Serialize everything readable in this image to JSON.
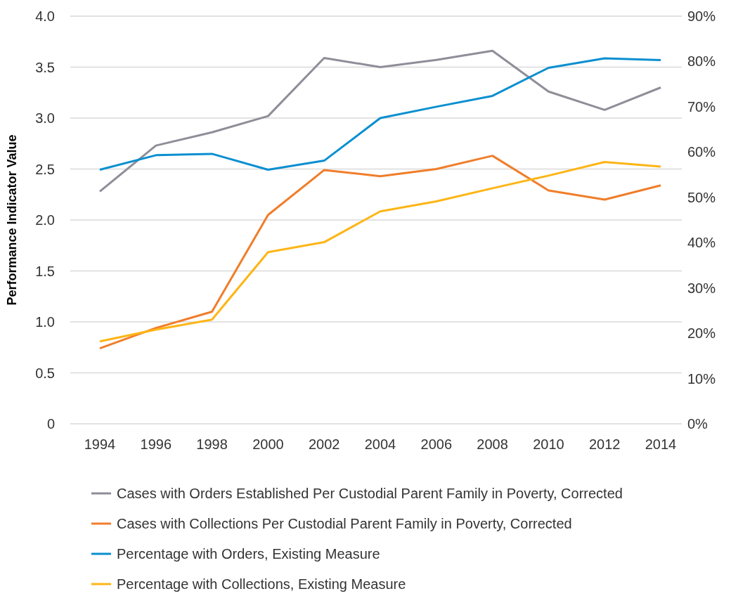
{
  "chart_data": {
    "type": "line",
    "ylabel": "Performance Indicator Value",
    "categories": [
      "1994",
      "1996",
      "1998",
      "2000",
      "2002",
      "2004",
      "2006",
      "2008",
      "2010",
      "2012",
      "2014"
    ],
    "series": [
      {
        "name": "Cases with Orders Established Per Custodial Parent Family in Poverty, Corrected",
        "color": "#8e8e99",
        "values": [
          2.28,
          2.73,
          2.86,
          3.02,
          3.59,
          3.5,
          3.57,
          3.66,
          3.26,
          3.08,
          3.3
        ]
      },
      {
        "name": "Cases with Collections Per Custodial Parent Family in Poverty, Corrected",
        "color": "#f07d2a",
        "values": [
          0.74,
          0.94,
          1.1,
          2.05,
          2.49,
          2.43,
          2.5,
          2.63,
          2.29,
          2.2,
          2.34
        ]
      },
      {
        "name": "Percentage with Orders, Existing Measure",
        "color": "#0a8fd0",
        "axis": "y2",
        "values": [
          56.1,
          59.3,
          59.6,
          56.1,
          58.1,
          67.5,
          70,
          72.4,
          78.6,
          80.7,
          80.3
        ]
      },
      {
        "name": "Percentage with Collections, Existing Measure",
        "color": "#fdb515",
        "axis": "y2",
        "values": [
          18.2,
          20.8,
          23,
          37.9,
          40.1,
          46.9,
          49.1,
          52,
          54.8,
          57.8,
          56.8
        ]
      }
    ],
    "ylim": [
      0,
      4
    ],
    "yticks": [
      0,
      {
        "value": 0.5,
        "label": "0.5"
      },
      {
        "value": 1,
        "label": "1.0"
      },
      {
        "value": 1.5,
        "label": "1.5"
      },
      {
        "value": 2,
        "label": "2.0"
      },
      {
        "value": 2.5,
        "label": "2.5"
      },
      {
        "value": 3,
        "label": "3.0"
      },
      {
        "value": 3.5,
        "label": "3.5"
      },
      {
        "value": 4,
        "label": "4.0"
      }
    ],
    "y2lim": [
      0,
      90
    ],
    "y2ticks": [
      {
        "value": 0,
        "label": "0%"
      },
      {
        "value": 10,
        "label": "10%"
      },
      {
        "value": 20,
        "label": "20%"
      },
      {
        "value": 30,
        "label": "30%"
      },
      {
        "value": 40,
        "label": "40%"
      },
      {
        "value": 50,
        "label": "50%"
      },
      {
        "value": 60,
        "label": "60%"
      },
      {
        "value": 70,
        "label": "70%"
      },
      {
        "value": 80,
        "label": "80%"
      },
      {
        "value": 90,
        "label": "90%"
      }
    ],
    "grid": "y",
    "legend": "bottom",
    "marker": "none",
    "line_style": "solid"
  }
}
